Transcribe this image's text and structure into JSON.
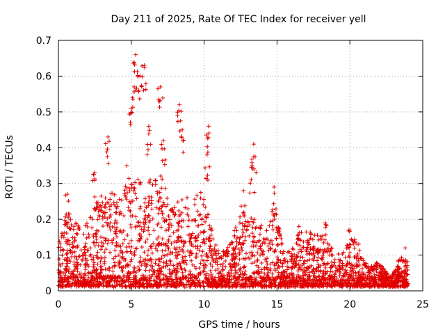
{
  "chart_data": {
    "type": "scatter",
    "title": "Day 211 of 2025, Rate Of TEC Index for receiver yell",
    "xlabel": "GPS time / hours",
    "ylabel": "ROTI / TECUs",
    "xlim": [
      0,
      25
    ],
    "ylim": [
      0,
      0.7
    ],
    "xticks": [
      0,
      5,
      10,
      15,
      20,
      25
    ],
    "yticks": [
      0,
      0.1,
      0.2,
      0.3,
      0.4,
      0.5,
      0.6,
      0.7
    ],
    "xtick_labels": [
      "0",
      "5",
      "10",
      "15",
      "20",
      "25"
    ],
    "ytick_labels": [
      "0",
      "0.1",
      "0.2",
      "0.3",
      "0.4",
      "0.5",
      "0.6",
      "0.7"
    ],
    "grid": true,
    "marker": "+",
    "color": "#e00000",
    "series": [
      {
        "name": "ROTI",
        "envelope_hours": [
          0.0,
          0.5,
          1.0,
          1.5,
          2.0,
          2.5,
          3.0,
          3.5,
          4.0,
          4.5,
          5.0,
          5.5,
          6.0,
          6.5,
          7.0,
          7.5,
          8.0,
          8.5,
          9.0,
          9.5,
          10.0,
          10.5,
          11.0,
          11.5,
          12.0,
          12.5,
          13.0,
          13.5,
          14.0,
          14.5,
          15.0,
          15.5,
          16.0,
          16.5,
          17.0,
          17.5,
          18.0,
          18.5,
          19.0,
          19.5,
          20.0,
          20.5,
          21.0,
          21.5,
          22.0,
          22.5,
          23.0,
          23.5,
          24.0
        ],
        "envelope_typical_max": [
          0.12,
          0.2,
          0.19,
          0.17,
          0.18,
          0.23,
          0.26,
          0.28,
          0.25,
          0.26,
          0.3,
          0.32,
          0.3,
          0.3,
          0.32,
          0.25,
          0.25,
          0.25,
          0.26,
          0.28,
          0.25,
          0.18,
          0.1,
          0.1,
          0.15,
          0.2,
          0.2,
          0.19,
          0.17,
          0.22,
          0.2,
          0.09,
          0.11,
          0.15,
          0.16,
          0.15,
          0.14,
          0.13,
          0.1,
          0.1,
          0.13,
          0.14,
          0.07,
          0.06,
          0.07,
          0.04,
          0.04,
          0.09,
          0.07
        ],
        "peaks": [
          {
            "x": 0.6,
            "y": 0.27
          },
          {
            "x": 2.5,
            "y": 0.33
          },
          {
            "x": 3.4,
            "y": 0.43
          },
          {
            "x": 4.7,
            "y": 0.35
          },
          {
            "x": 5.0,
            "y": 0.51
          },
          {
            "x": 5.2,
            "y": 0.57
          },
          {
            "x": 5.3,
            "y": 0.66
          },
          {
            "x": 5.6,
            "y": 0.6
          },
          {
            "x": 5.9,
            "y": 0.63
          },
          {
            "x": 6.2,
            "y": 0.46
          },
          {
            "x": 7.0,
            "y": 0.57
          },
          {
            "x": 7.2,
            "y": 0.42
          },
          {
            "x": 8.3,
            "y": 0.52
          },
          {
            "x": 8.5,
            "y": 0.45
          },
          {
            "x": 10.3,
            "y": 0.46
          },
          {
            "x": 10.2,
            "y": 0.38
          },
          {
            "x": 12.7,
            "y": 0.28
          },
          {
            "x": 13.4,
            "y": 0.41
          },
          {
            "x": 13.3,
            "y": 0.35
          },
          {
            "x": 14.8,
            "y": 0.29
          },
          {
            "x": 16.5,
            "y": 0.18
          },
          {
            "x": 18.3,
            "y": 0.19
          },
          {
            "x": 20.0,
            "y": 0.17
          },
          {
            "x": 23.8,
            "y": 0.12
          }
        ]
      }
    ]
  }
}
